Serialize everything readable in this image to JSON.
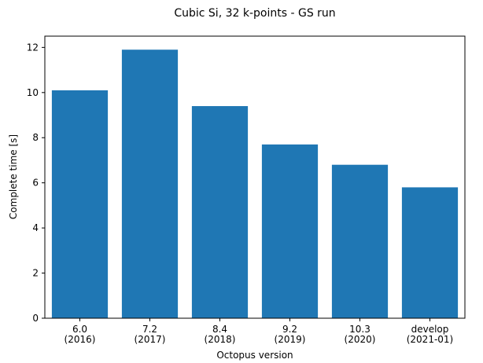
{
  "chart_data": {
    "type": "bar",
    "title": "Cubic Si, 32 k-points - GS run",
    "xlabel": "Octopus version",
    "ylabel": "Complete time [s]",
    "categories": [
      [
        "6.0",
        "(2016)"
      ],
      [
        "7.2",
        "(2017)"
      ],
      [
        "8.4",
        "(2018)"
      ],
      [
        "9.2",
        "(2019)"
      ],
      [
        "10.3",
        "(2020)"
      ],
      [
        "develop",
        "(2021-01)"
      ]
    ],
    "values": [
      10.1,
      11.9,
      9.4,
      7.7,
      6.8,
      5.8
    ],
    "ylim": [
      0,
      12.5
    ],
    "yticks": [
      0,
      2,
      4,
      6,
      8,
      10,
      12
    ],
    "bar_color": "#1f77b4",
    "grid": false,
    "legend": "none"
  }
}
